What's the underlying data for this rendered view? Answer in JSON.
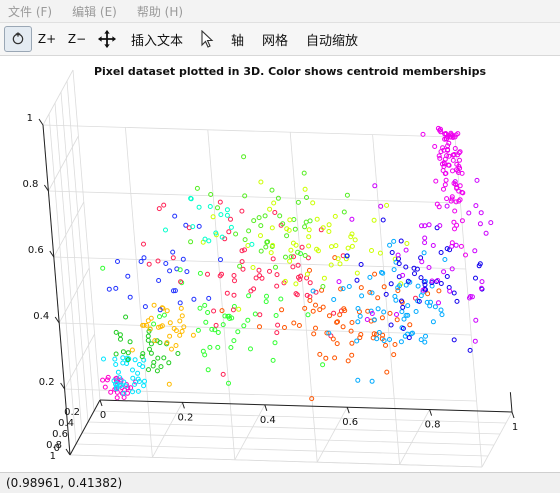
{
  "menu": {
    "items": [
      {
        "label": "文件 (F)"
      },
      {
        "label": "编辑 (E)"
      },
      {
        "label": "帮助 (H)"
      }
    ]
  },
  "toolbar": {
    "zoom_in_label": "Z+",
    "zoom_out_label": "Z−",
    "insert_text_label": "插入文本",
    "axes_label": "轴",
    "grid_label": "网格",
    "autoscale_label": "自动缩放"
  },
  "chart_data": {
    "type": "scatter",
    "title": "Pixel dataset plotted in 3D. Color shows centroid memberships",
    "x_ticks": [
      "0",
      "0.2",
      "0.4",
      "0.6",
      "0.8",
      "1"
    ],
    "y_ticks": [
      "0",
      "0.2",
      "0.4",
      "0.6",
      "0.8",
      "1"
    ],
    "z_ticks": [
      "0",
      "0.2",
      "0.4",
      "0.6",
      "0.8",
      "1"
    ],
    "xlim": [
      0,
      1
    ],
    "ylim": [
      0,
      1
    ],
    "zlim": [
      0,
      1
    ],
    "grid": true,
    "clusters": [
      {
        "color": "#ff00cc",
        "center": [
          0.05,
          0.0,
          0.05
        ],
        "spread": [
          0.02,
          0.03,
          0.02
        ],
        "count": 25
      },
      {
        "color": "#00e5ff",
        "center": [
          0.08,
          0.15,
          0.1
        ],
        "spread": [
          0.03,
          0.05,
          0.03
        ],
        "count": 35
      },
      {
        "color": "#22cc22",
        "center": [
          0.14,
          0.25,
          0.2
        ],
        "spread": [
          0.04,
          0.05,
          0.04
        ],
        "count": 30
      },
      {
        "color": "#ffbb00",
        "center": [
          0.18,
          0.1,
          0.25
        ],
        "spread": [
          0.04,
          0.06,
          0.05
        ],
        "count": 30
      },
      {
        "color": "#2233ff",
        "center": [
          0.2,
          0.0,
          0.38
        ],
        "spread": [
          0.07,
          0.04,
          0.07
        ],
        "count": 25
      },
      {
        "color": "#33ff33",
        "center": [
          0.38,
          0.25,
          0.3
        ],
        "spread": [
          0.1,
          0.1,
          0.08
        ],
        "count": 45
      },
      {
        "color": "#ff2255",
        "center": [
          0.4,
          0.1,
          0.4
        ],
        "spread": [
          0.12,
          0.1,
          0.1
        ],
        "count": 65
      },
      {
        "color": "#ff5500",
        "center": [
          0.65,
          0.5,
          0.35
        ],
        "spread": [
          0.1,
          0.1,
          0.08
        ],
        "count": 65
      },
      {
        "color": "#55ee22",
        "center": [
          0.48,
          0.5,
          0.62
        ],
        "spread": [
          0.08,
          0.1,
          0.07
        ],
        "count": 40
      },
      {
        "color": "#ccff00",
        "center": [
          0.6,
          0.8,
          0.62
        ],
        "spread": [
          0.12,
          0.15,
          0.08
        ],
        "count": 55
      },
      {
        "color": "#00ffcc",
        "center": [
          0.38,
          0.8,
          0.7
        ],
        "spread": [
          0.07,
          0.1,
          0.06
        ],
        "count": 15
      },
      {
        "color": "#00aaff",
        "center": [
          0.8,
          0.85,
          0.45
        ],
        "spread": [
          0.08,
          0.1,
          0.08
        ],
        "count": 65
      },
      {
        "color": "#1100ee",
        "center": [
          0.85,
          0.55,
          0.45
        ],
        "spread": [
          0.08,
          0.15,
          0.08
        ],
        "count": 45
      },
      {
        "color": "#cc00ff",
        "center": [
          0.9,
          0.6,
          0.55
        ],
        "spread": [
          0.1,
          0.2,
          0.12
        ],
        "count": 45
      },
      {
        "color": "#ee00ee",
        "center": [
          0.98,
          0.95,
          0.9
        ],
        "spread": [
          0.02,
          0.05,
          0.1
        ],
        "count": 90
      }
    ]
  },
  "status": {
    "coords": "(0.98961, 0.41382)"
  }
}
